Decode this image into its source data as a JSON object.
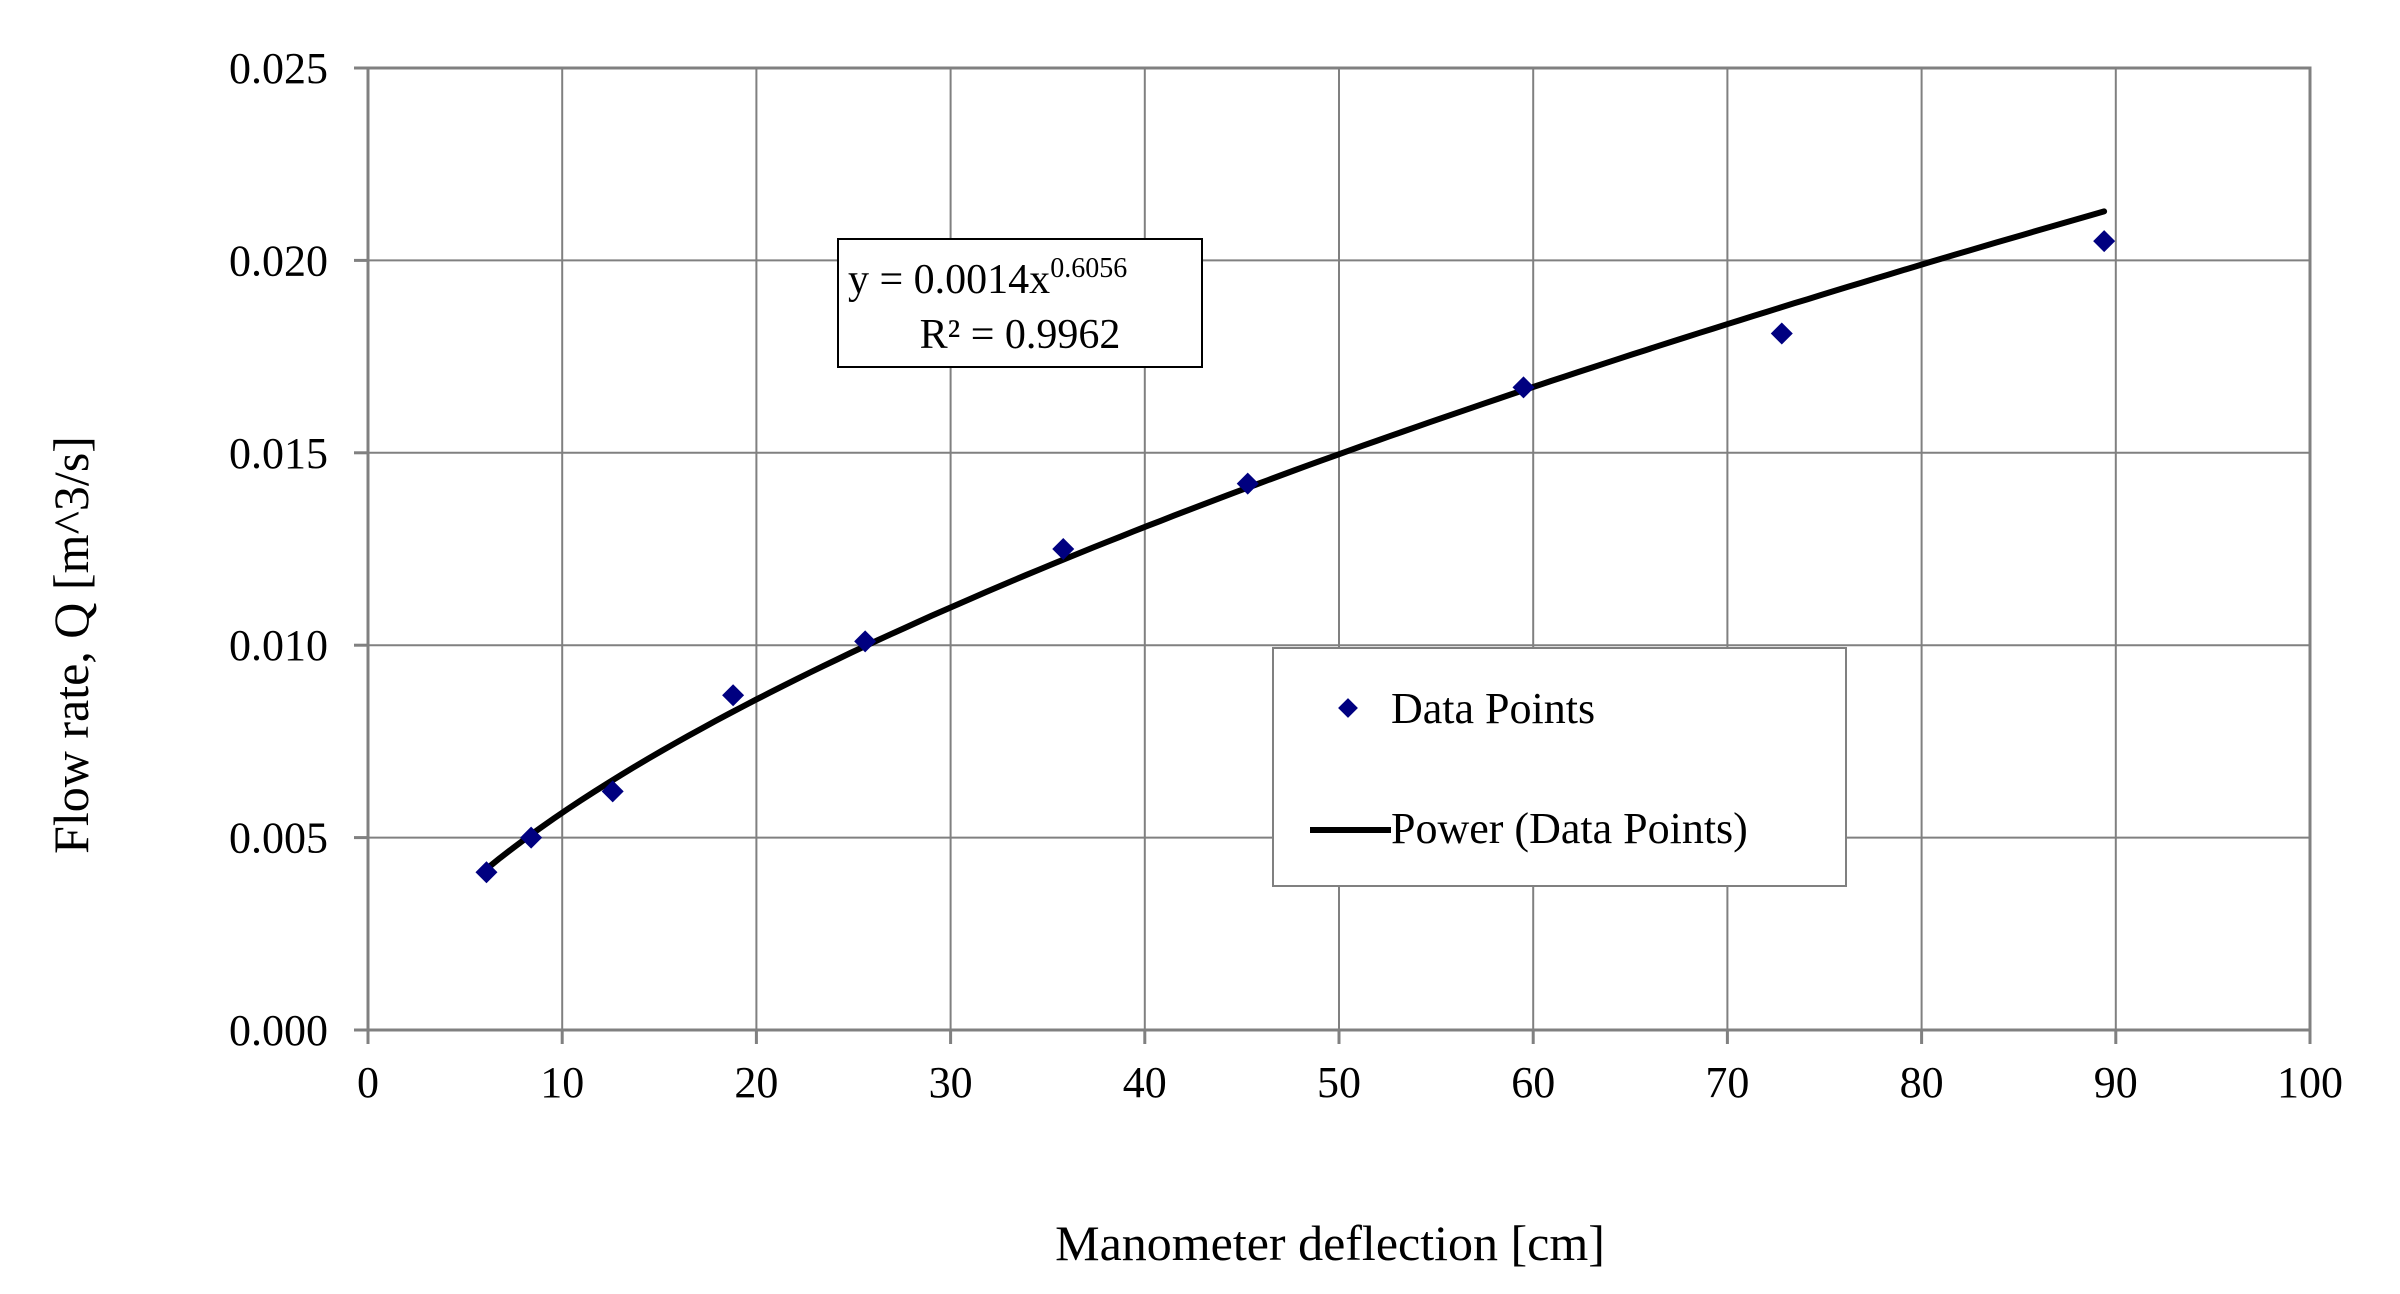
{
  "chart_data": {
    "type": "scatter",
    "title": "",
    "xlabel": "Manometer deflection [cm]",
    "ylabel": "Flow rate, Q [m^3/s]",
    "xlim": [
      0,
      100
    ],
    "ylim": [
      0,
      0.025
    ],
    "x_ticks": [
      "0",
      "10",
      "20",
      "30",
      "40",
      "50",
      "60",
      "70",
      "80",
      "90",
      "100"
    ],
    "y_ticks": [
      "0.000",
      "0.005",
      "0.010",
      "0.015",
      "0.020",
      "0.025"
    ],
    "grid": true,
    "legend_position": "center-right",
    "series": [
      {
        "name": "Data Points",
        "kind": "scatter",
        "marker": "diamond",
        "color": "#000080",
        "x": [
          6.1,
          8.4,
          12.6,
          18.8,
          25.6,
          35.8,
          45.3,
          59.5,
          72.8,
          89.4
        ],
        "y": [
          0.0041,
          0.005,
          0.0062,
          0.0087,
          0.0101,
          0.0125,
          0.0142,
          0.0167,
          0.0181,
          0.0205
        ]
      },
      {
        "name": "Power (Data Points)",
        "kind": "trendline",
        "color": "#000000",
        "coefficient": 0.0014,
        "exponent": 0.6056,
        "x_range": [
          6.1,
          89.4
        ]
      }
    ],
    "annotation": {
      "equation_prefix": "y = 0.0014x",
      "equation_exponent": "0.6056",
      "r_squared": "R² = 0.9962"
    }
  }
}
